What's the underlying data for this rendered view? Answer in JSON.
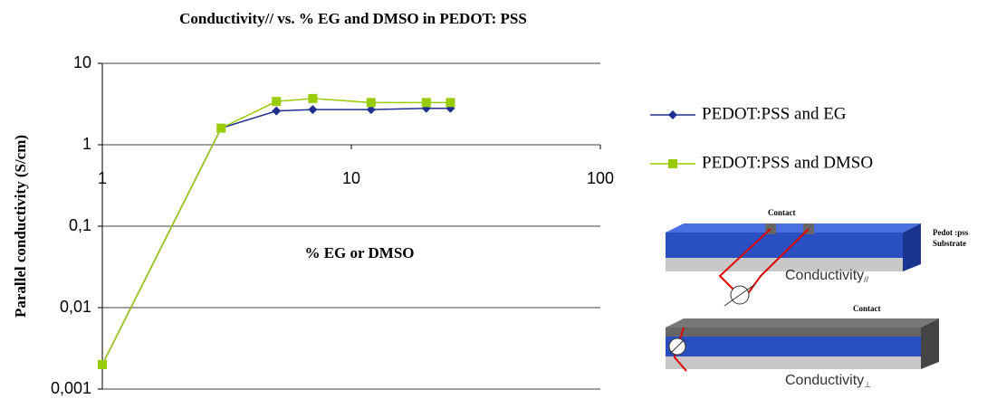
{
  "chart_data": {
    "type": "line",
    "title": "Conductivity//  vs. % EG and DMSO in PEDOT: PSS",
    "x_label": "% EG or DMSO",
    "y_label": "Parallel conductivity (S/cm)",
    "x": [
      1,
      3,
      5,
      7,
      12,
      20,
      25
    ],
    "series": [
      {
        "name": "PEDOT:PSS and EG",
        "color": "#1f2f8f",
        "marker": "diamond",
        "values": [
          0.002,
          1.6,
          2.6,
          2.7,
          2.7,
          2.8,
          2.8
        ]
      },
      {
        "name": "PEDOT:PSS and DMSO",
        "color": "#99cc00",
        "marker": "square",
        "values": [
          0.002,
          1.6,
          3.4,
          3.7,
          3.3,
          3.3,
          3.3
        ]
      }
    ],
    "xlim": [
      1,
      100
    ],
    "xticks": [
      1,
      10,
      100
    ],
    "x_log": true,
    "ylim": [
      0.001,
      10
    ],
    "y_log": true,
    "yticks": [
      {
        "value": 0.001,
        "label": "0,001"
      },
      {
        "value": 0.01,
        "label": "0,01"
      },
      {
        "value": 0.1,
        "label": "0,1"
      },
      1,
      10
    ],
    "grid": true,
    "legend": "right"
  },
  "illustration": {
    "top": {
      "contact": "Contact",
      "layer1": "Pedot :pss",
      "layer2": "Substrate",
      "caption": "Conductivity",
      "caption_sub": "//"
    },
    "bottom": {
      "contact": "Contact",
      "caption": "Conductivity",
      "caption_sub": "⊥"
    }
  }
}
